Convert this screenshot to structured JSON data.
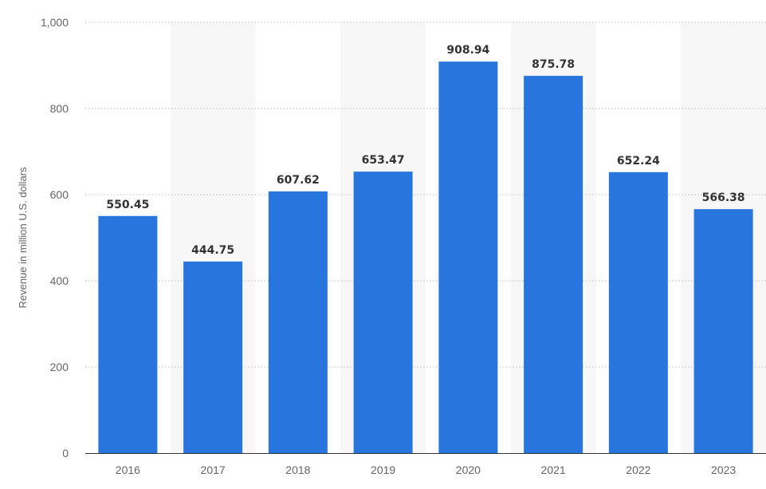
{
  "chart_data": {
    "type": "bar",
    "categories": [
      "2016",
      "2017",
      "2018",
      "2019",
      "2020",
      "2021",
      "2022",
      "2023"
    ],
    "values": [
      550.45,
      444.75,
      607.62,
      653.47,
      908.94,
      875.78,
      652.24,
      566.38
    ],
    "value_labels": [
      "550.45",
      "444.75",
      "607.62",
      "653.47",
      "908.94",
      "875.78",
      "652.24",
      "566.38"
    ],
    "title": "",
    "xlabel": "",
    "ylabel": "Revenue in million U.S. dollars",
    "ylim": [
      0,
      1000
    ],
    "yticks": [
      0,
      200,
      400,
      600,
      800,
      1000
    ],
    "ytick_labels": [
      "0",
      "200",
      "400",
      "600",
      "800",
      "1,000"
    ],
    "grid": true,
    "legend": "none",
    "colors": {
      "bar": "#2876dd",
      "band": "#f7f7f7",
      "grid": "#cccccc",
      "axis": "#333333"
    }
  }
}
